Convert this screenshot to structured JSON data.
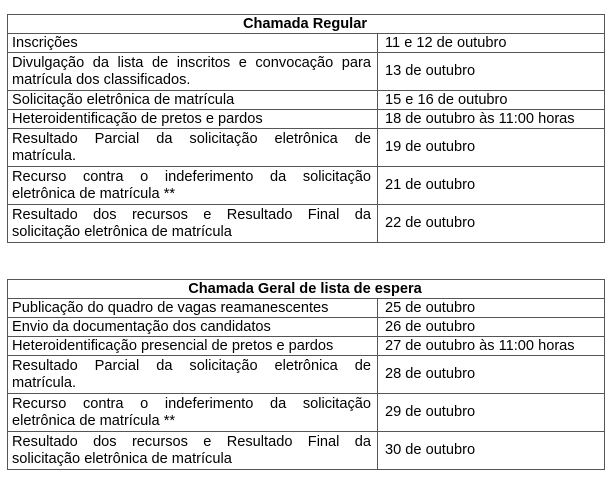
{
  "tables": [
    {
      "title": "Chamada Regular",
      "rows": [
        {
          "event": "Inscrições",
          "date": "11 e 12 de outubro"
        },
        {
          "event": "Divulgação da lista de inscritos e convocação para matrícula dos classificados.",
          "date": "13 de outubro"
        },
        {
          "event": "Solicitação eletrônica de matrícula",
          "date": "15 e 16 de outubro"
        },
        {
          "event": "Heteroidentificação de pretos e pardos",
          "date": "18 de outubro às 11:00 horas"
        },
        {
          "event": "Resultado Parcial da solicitação eletrônica de matrícula.",
          "date": "19 de outubro"
        },
        {
          "event": "Recurso contra o indeferimento da solicitação eletrônica de matrícula **",
          "date": "21 de outubro"
        },
        {
          "event": "Resultado dos recursos e Resultado Final da solicitação eletrônica de matrícula",
          "date": "22 de outubro"
        }
      ]
    },
    {
      "title": "Chamada Geral de lista de espera",
      "rows": [
        {
          "event": "Publicação do quadro de vagas reamanescentes",
          "date": "25 de outubro"
        },
        {
          "event": "Envio da documentação dos candidatos",
          "date": "26 de outubro"
        },
        {
          "event": "Heteroidentificação presencial de pretos e pardos",
          "date": "27 de outubro às 11:00 horas"
        },
        {
          "event": "Resultado Parcial da solicitação eletrônica de matrícula.",
          "date": "28 de outubro"
        },
        {
          "event": "Recurso contra o indeferimento da solicitação eletrônica de matrícula **",
          "date": "29 de outubro"
        },
        {
          "event": "Resultado dos recursos e Resultado Final da solicitação eletrônica de matrícula",
          "date": "30 de outubro"
        }
      ]
    }
  ]
}
